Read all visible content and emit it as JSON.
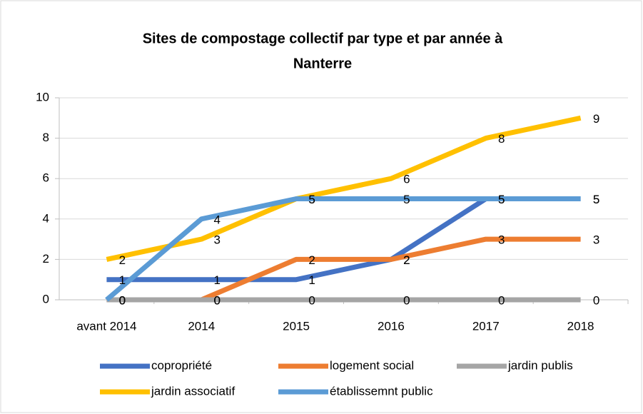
{
  "chart_data": {
    "type": "line",
    "title": [
      "Sites de compostage collectif par type et par année à",
      "Nanterre"
    ],
    "categories": [
      "avant 2014",
      "2014",
      "2015",
      "2016",
      "2017",
      "2018"
    ],
    "series": [
      {
        "name": "copropriété",
        "color": "#4472c4",
        "values": [
          1,
          1,
          1,
          2,
          5,
          5
        ]
      },
      {
        "name": "logement social",
        "color": "#ed7d31",
        "values": [
          0,
          0,
          2,
          2,
          3,
          3
        ]
      },
      {
        "name": "jardin publis",
        "color": "#a5a5a5",
        "values": [
          0,
          0,
          0,
          0,
          0,
          0
        ]
      },
      {
        "name": "jardin associatif",
        "color": "#ffc000",
        "values": [
          2,
          3,
          5,
          6,
          8,
          9
        ]
      },
      {
        "name": "établissemnt public",
        "color": "#5b9bd5",
        "values": [
          0,
          4,
          5,
          5,
          5,
          5
        ]
      }
    ],
    "ylim": [
      0,
      10
    ],
    "yticks": [
      0,
      2,
      4,
      6,
      8,
      10
    ],
    "grid": true,
    "legend": "bottom"
  }
}
